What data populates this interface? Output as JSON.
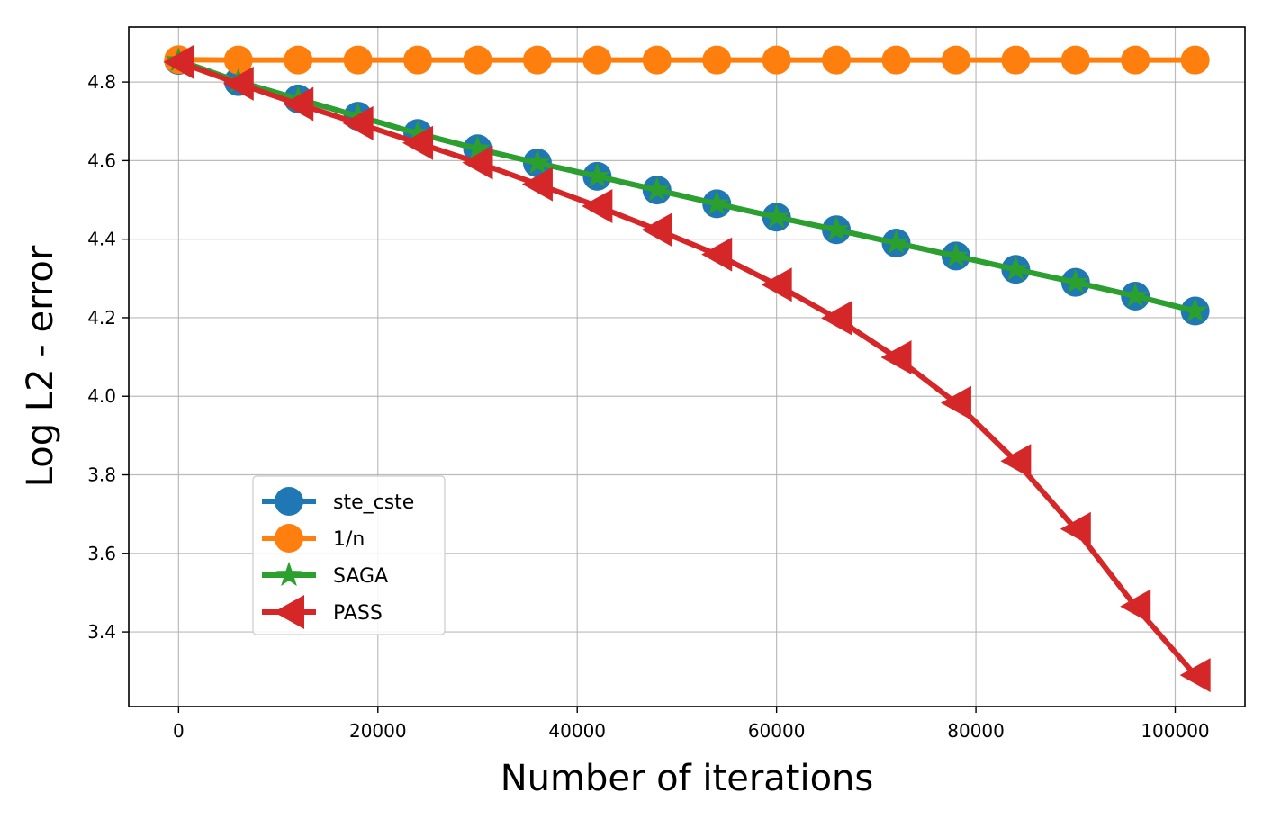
{
  "chart_data": {
    "type": "line",
    "title": "",
    "xlabel": "Number of iterations",
    "ylabel": "Log L2 - error",
    "xlim": [
      -5000,
      107000
    ],
    "ylim": [
      3.21,
      4.94
    ],
    "xticks": [
      0,
      20000,
      40000,
      60000,
      80000,
      100000
    ],
    "yticks": [
      3.4,
      3.6,
      3.8,
      4.0,
      4.2,
      4.4,
      4.6,
      4.8
    ],
    "grid": true,
    "legend": {
      "position": "lower-left"
    },
    "x": [
      0,
      6000,
      12000,
      18000,
      24000,
      30000,
      36000,
      42000,
      48000,
      54000,
      60000,
      66000,
      72000,
      78000,
      84000,
      90000,
      96000,
      102000
    ],
    "series": [
      {
        "name": "ste_cste",
        "color": "#1f77b4",
        "marker": "circle",
        "values": [
          4.855,
          4.801,
          4.757,
          4.713,
          4.669,
          4.63,
          4.594,
          4.56,
          4.525,
          4.49,
          4.456,
          4.424,
          4.39,
          4.357,
          4.323,
          4.29,
          4.255,
          4.217
        ]
      },
      {
        "name": "1/n",
        "color": "#ff7f0e",
        "marker": "circle",
        "values": [
          4.857,
          4.856,
          4.856,
          4.856,
          4.856,
          4.856,
          4.856,
          4.856,
          4.856,
          4.856,
          4.856,
          4.856,
          4.856,
          4.856,
          4.856,
          4.856,
          4.856,
          4.856
        ]
      },
      {
        "name": "SAGA",
        "color": "#2ca02c",
        "marker": "star",
        "values": [
          4.855,
          4.801,
          4.757,
          4.713,
          4.669,
          4.63,
          4.594,
          4.56,
          4.525,
          4.49,
          4.456,
          4.424,
          4.39,
          4.357,
          4.323,
          4.29,
          4.255,
          4.217
        ]
      },
      {
        "name": "PASS",
        "color": "#d62728",
        "marker": "triangle-left",
        "values": [
          4.851,
          4.796,
          4.744,
          4.695,
          4.645,
          4.595,
          4.54,
          4.484,
          4.424,
          4.361,
          4.284,
          4.199,
          4.099,
          3.983,
          3.835,
          3.662,
          3.465,
          3.29
        ]
      }
    ]
  }
}
